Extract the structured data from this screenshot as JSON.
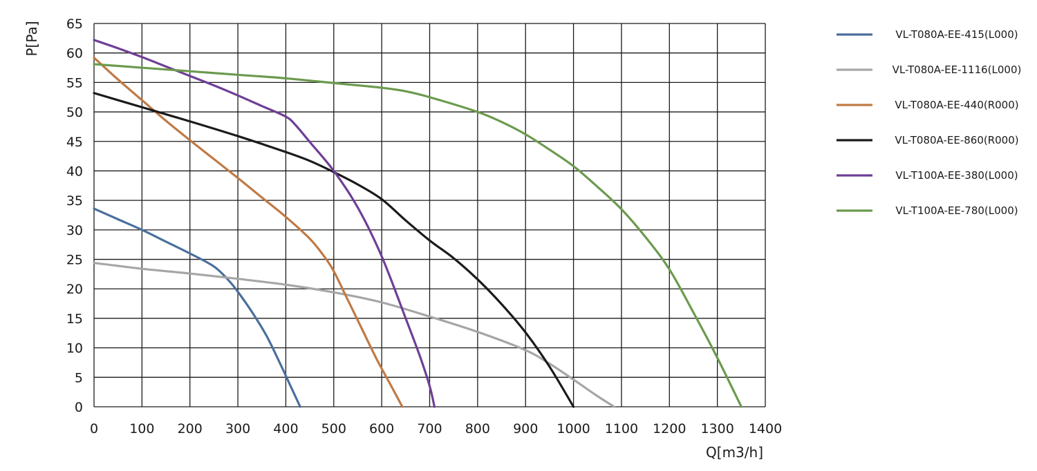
{
  "chart_data": {
    "type": "line",
    "title": "",
    "xlabel": "Q[m3/h]",
    "ylabel": "P[Pa]",
    "xlim": [
      0,
      1400
    ],
    "ylim": [
      0,
      65
    ],
    "xticks": [
      0,
      100,
      200,
      300,
      400,
      500,
      600,
      700,
      800,
      900,
      1000,
      1100,
      1200,
      1300,
      1400
    ],
    "yticks": [
      0,
      5,
      10,
      15,
      20,
      25,
      30,
      35,
      40,
      45,
      50,
      55,
      60,
      65
    ],
    "grid": true,
    "legend_position": "right",
    "series": [
      {
        "name": "VL-T080A-EE-415(L000)",
        "color": "#4a6f9c",
        "points": [
          [
            0,
            33.6
          ],
          [
            50,
            31.8
          ],
          [
            100,
            30
          ],
          [
            150,
            28
          ],
          [
            200,
            26
          ],
          [
            250,
            23.8
          ],
          [
            280,
            21.5
          ],
          [
            300,
            19.5
          ],
          [
            330,
            16
          ],
          [
            360,
            12
          ],
          [
            390,
            7
          ],
          [
            410,
            3.5
          ],
          [
            430,
            0
          ]
        ]
      },
      {
        "name": "VL-T080A-EE-1116(L000)",
        "color": "#a6a6a6",
        "points": [
          [
            0,
            24.4
          ],
          [
            100,
            23.4
          ],
          [
            200,
            22.6
          ],
          [
            300,
            21.7
          ],
          [
            400,
            20.7
          ],
          [
            500,
            19.4
          ],
          [
            600,
            17.7
          ],
          [
            700,
            15.3
          ],
          [
            800,
            12.7
          ],
          [
            900,
            9.6
          ],
          [
            950,
            7.3
          ],
          [
            1000,
            4.6
          ],
          [
            1050,
            1.8
          ],
          [
            1085,
            0
          ]
        ]
      },
      {
        "name": "VL-T080A-EE-440(R000)",
        "color": "#c07a45",
        "points": [
          [
            0,
            59.2
          ],
          [
            50,
            55.5
          ],
          [
            100,
            52
          ],
          [
            150,
            48.5
          ],
          [
            200,
            45.2
          ],
          [
            250,
            42
          ],
          [
            300,
            38.8
          ],
          [
            350,
            35.5
          ],
          [
            400,
            32.2
          ],
          [
            450,
            28.5
          ],
          [
            480,
            25.5
          ],
          [
            500,
            23
          ],
          [
            530,
            18
          ],
          [
            560,
            13
          ],
          [
            590,
            8
          ],
          [
            620,
            3.5
          ],
          [
            643,
            0
          ]
        ]
      },
      {
        "name": "VL-T080A-EE-860(R000)",
        "color": "#1a1a1a",
        "points": [
          [
            0,
            53.2
          ],
          [
            100,
            50.8
          ],
          [
            200,
            48.4
          ],
          [
            300,
            45.9
          ],
          [
            400,
            43.2
          ],
          [
            450,
            41.7
          ],
          [
            500,
            39.8
          ],
          [
            550,
            37.7
          ],
          [
            600,
            35.2
          ],
          [
            650,
            31.6
          ],
          [
            700,
            28.2
          ],
          [
            750,
            25.2
          ],
          [
            800,
            21.6
          ],
          [
            850,
            17.4
          ],
          [
            900,
            12.6
          ],
          [
            950,
            6.8
          ],
          [
            1000,
            0
          ]
        ]
      },
      {
        "name": "VL-T100A-EE-380(L000)",
        "color": "#6e3f96",
        "points": [
          [
            0,
            62.2
          ],
          [
            50,
            60.8
          ],
          [
            100,
            59.3
          ],
          [
            150,
            57.7
          ],
          [
            200,
            56.1
          ],
          [
            250,
            54.5
          ],
          [
            300,
            52.8
          ],
          [
            350,
            51
          ],
          [
            400,
            49.2
          ],
          [
            420,
            47.8
          ],
          [
            450,
            44.9
          ],
          [
            500,
            40
          ],
          [
            550,
            33.8
          ],
          [
            600,
            25.5
          ],
          [
            650,
            15
          ],
          [
            680,
            8.5
          ],
          [
            700,
            3.5
          ],
          [
            710,
            0
          ]
        ]
      },
      {
        "name": "VL-T100A-EE-780(L000)",
        "color": "#6b9a4e",
        "points": [
          [
            0,
            58.1
          ],
          [
            100,
            57.5
          ],
          [
            200,
            56.9
          ],
          [
            300,
            56.3
          ],
          [
            400,
            55.7
          ],
          [
            500,
            54.9
          ],
          [
            600,
            54.1
          ],
          [
            650,
            53.5
          ],
          [
            700,
            52.5
          ],
          [
            800,
            50
          ],
          [
            850,
            48.3
          ],
          [
            900,
            46.2
          ],
          [
            950,
            43.6
          ],
          [
            1000,
            40.8
          ],
          [
            1050,
            37.3
          ],
          [
            1100,
            33.5
          ],
          [
            1150,
            28.8
          ],
          [
            1200,
            23.3
          ],
          [
            1250,
            16
          ],
          [
            1300,
            8.3
          ],
          [
            1350,
            0
          ]
        ]
      }
    ]
  }
}
